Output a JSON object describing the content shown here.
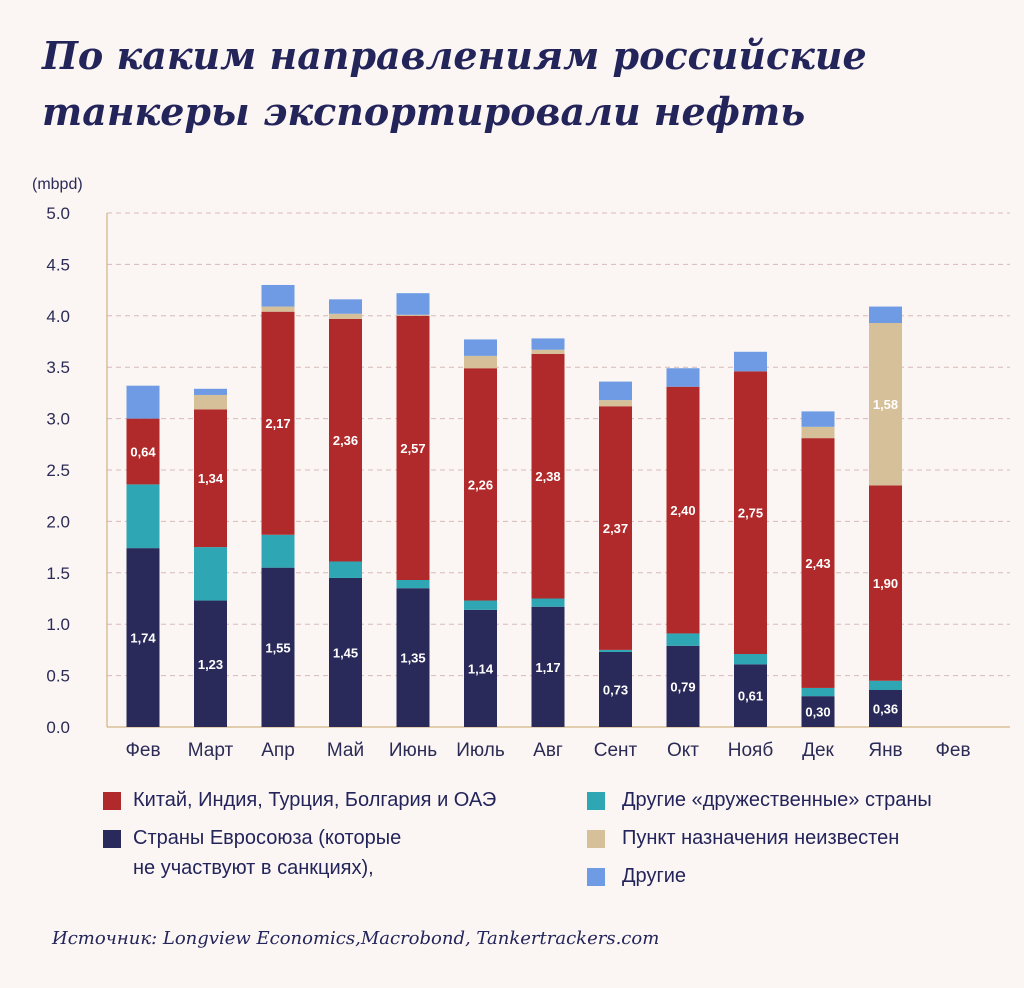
{
  "title": [
    "По каким направлениям российские",
    "танкеры экспортировали нефть"
  ],
  "source": "Источник: Longview Economics,Macrobond, Tankertrackers.com",
  "colors": {
    "eu": "#2a2a5a",
    "friendly": "#2ea6b3",
    "china": "#b12a2b",
    "unknown": "#d6c09a",
    "other": "#6e9be3",
    "grid": "#d9b8b8",
    "axis": "#2b2b55"
  },
  "legend": {
    "china": "Китай, Индия, Турция, Болгария и ОАЭ",
    "eu_line1": "Страны Евросоюза (которые",
    "eu_line2": "не участвуют в санкциях),",
    "friendly": "Другие «дружественные» страны",
    "unknown": "Пункт назначения неизвестен",
    "other": "Другие"
  },
  "chart_data": {
    "type": "bar",
    "stacked": true,
    "ylabel": "(mbpd)",
    "ylim": [
      0,
      5
    ],
    "yticks": [
      "0.0",
      "0.5",
      "1.0",
      "1.5",
      "2.0",
      "2.5",
      "3.0",
      "3.5",
      "4.0",
      "4.5",
      "5.0"
    ],
    "grid": true,
    "categories": [
      "Фев",
      "Март",
      "Апр",
      "Май",
      "Июнь",
      "Июль",
      "Авг",
      "Сент",
      "Окт",
      "Нояб",
      "Дек",
      "Янв",
      "Фев"
    ],
    "series": [
      {
        "key": "eu",
        "values": [
          1.74,
          1.23,
          1.55,
          1.45,
          1.35,
          1.14,
          1.17,
          0.73,
          0.79,
          0.61,
          0.3,
          0.36,
          null
        ],
        "labels": [
          "1,74",
          "1,23",
          "1,55",
          "1,45",
          "1,35",
          "1,14",
          "1,17",
          "0,73",
          "0,79",
          "0,61",
          "0,30",
          "0,36",
          ""
        ]
      },
      {
        "key": "friendly",
        "values": [
          0.62,
          0.52,
          0.32,
          0.16,
          0.08,
          0.09,
          0.08,
          0.02,
          0.12,
          0.1,
          0.08,
          0.09,
          null
        ]
      },
      {
        "key": "china",
        "values": [
          0.64,
          1.34,
          2.17,
          2.36,
          2.57,
          2.26,
          2.38,
          2.37,
          2.4,
          2.75,
          2.43,
          1.9,
          null
        ],
        "labels": [
          "0,64",
          "1,34",
          "2,17",
          "2,36",
          "2,57",
          "2,26",
          "2,38",
          "2,37",
          "2,40",
          "2,75",
          "2,43",
          "1,90",
          ""
        ]
      },
      {
        "key": "unknown",
        "values": [
          0.0,
          0.14,
          0.05,
          0.05,
          0.01,
          0.12,
          0.04,
          0.06,
          0.0,
          0.0,
          0.11,
          1.58,
          null
        ],
        "labels": [
          "",
          "",
          "",
          "",
          "",
          "",
          "",
          "",
          "",
          "",
          "",
          "1,58",
          ""
        ]
      },
      {
        "key": "other",
        "values": [
          0.32,
          0.06,
          0.21,
          0.14,
          0.21,
          0.16,
          0.11,
          0.18,
          0.18,
          0.19,
          0.15,
          0.16,
          null
        ]
      }
    ]
  }
}
